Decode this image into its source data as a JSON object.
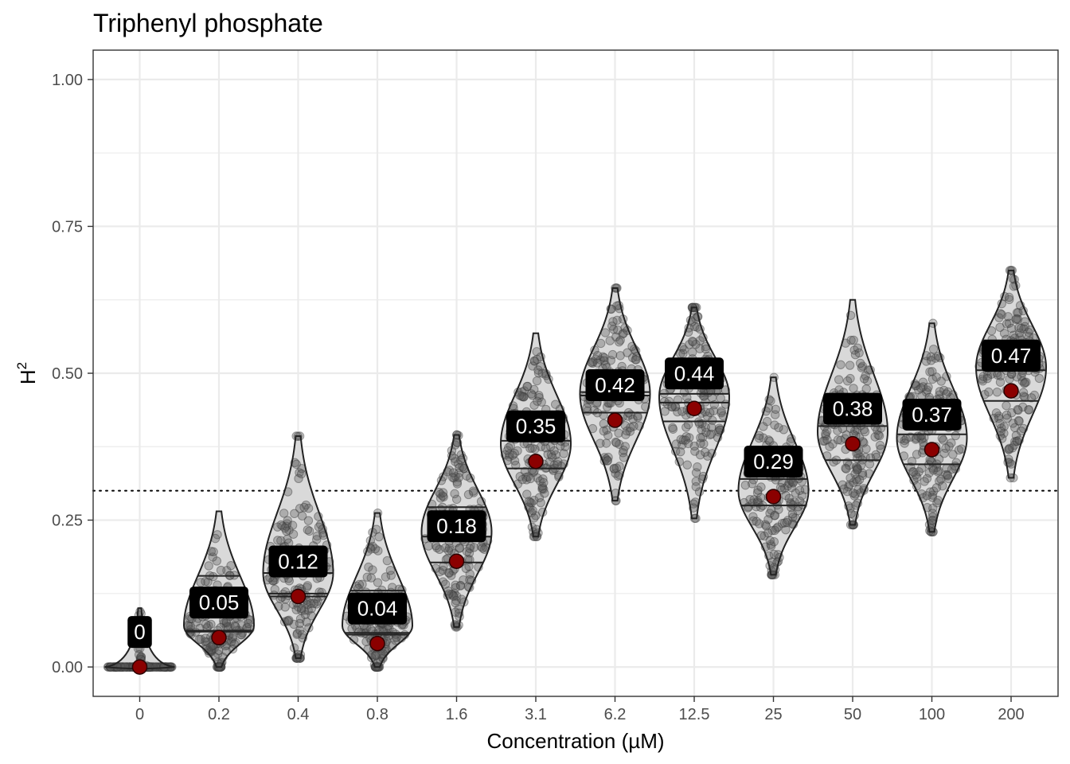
{
  "chart_data": {
    "type": "violin",
    "title": "Triphenyl phosphate",
    "xlabel": "Concentration (µM)",
    "ylabel": "H",
    "ylabel_superscript": "2",
    "ylim": [
      -0.05,
      1.05
    ],
    "yticks": [
      0.0,
      0.25,
      0.5,
      0.75,
      1.0
    ],
    "ytick_labels": [
      "0.00",
      "0.25",
      "0.50",
      "0.75",
      "1.00"
    ],
    "reference_line": 0.3,
    "colors": {
      "point_fill": "#8b0000",
      "label_bg": "#000000",
      "label_text": "#ffffff",
      "violin_fill": "#d9d9d9",
      "jitter": "#555555",
      "grid": "#ebebeb",
      "panel_border": "#333333"
    },
    "categories": [
      "0",
      "0.2",
      "0.4",
      "0.8",
      "1.6",
      "3.1",
      "6.2",
      "12.5",
      "25",
      "50",
      "100",
      "200"
    ],
    "groups": [
      {
        "x": "0",
        "point": 0.0,
        "label": "0",
        "min": 0.0,
        "q1": 0.0,
        "median": 0.0,
        "q3": 0.0,
        "max": 0.1,
        "mode": 0.0
      },
      {
        "x": "0.2",
        "point": 0.05,
        "label": "0.05",
        "min": 0.0,
        "q1": 0.06,
        "median": 0.062,
        "q3": 0.155,
        "max": 0.265,
        "mode": 0.07
      },
      {
        "x": "0.4",
        "point": 0.12,
        "label": "0.12",
        "min": 0.015,
        "q1": 0.12,
        "median": 0.125,
        "q3": 0.16,
        "max": 0.393,
        "mode": 0.16
      },
      {
        "x": "0.8",
        "point": 0.04,
        "label": "0.04",
        "min": 0.0,
        "q1": 0.055,
        "median": 0.058,
        "q3": 0.13,
        "max": 0.262,
        "mode": 0.07
      },
      {
        "x": "1.6",
        "point": 0.18,
        "label": "0.18",
        "min": 0.068,
        "q1": 0.178,
        "median": 0.222,
        "q3": 0.272,
        "max": 0.395,
        "mode": 0.23
      },
      {
        "x": "3.1",
        "point": 0.35,
        "label": "0.35",
        "min": 0.222,
        "q1": 0.338,
        "median": 0.385,
        "q3": 0.432,
        "max": 0.568,
        "mode": 0.38
      },
      {
        "x": "6.2",
        "point": 0.42,
        "label": "0.42",
        "min": 0.283,
        "q1": 0.433,
        "median": 0.462,
        "q3": 0.468,
        "max": 0.645,
        "mode": 0.465
      },
      {
        "x": "12.5",
        "point": 0.44,
        "label": "0.44",
        "min": 0.253,
        "q1": 0.418,
        "median": 0.45,
        "q3": 0.465,
        "max": 0.612,
        "mode": 0.46
      },
      {
        "x": "25",
        "point": 0.29,
        "label": "0.29",
        "min": 0.157,
        "q1": 0.275,
        "median": 0.32,
        "q3": 0.37,
        "max": 0.493,
        "mode": 0.3
      },
      {
        "x": "50",
        "point": 0.38,
        "label": "0.38",
        "min": 0.242,
        "q1": 0.352,
        "median": 0.41,
        "q3": 0.46,
        "max": 0.625,
        "mode": 0.4
      },
      {
        "x": "100",
        "point": 0.37,
        "label": "0.37",
        "min": 0.23,
        "q1": 0.345,
        "median": 0.396,
        "q3": 0.44,
        "max": 0.585,
        "mode": 0.39
      },
      {
        "x": "200",
        "point": 0.47,
        "label": "0.47",
        "min": 0.322,
        "q1": 0.453,
        "median": 0.505,
        "q3": 0.556,
        "max": 0.675,
        "mode": 0.51
      }
    ]
  }
}
